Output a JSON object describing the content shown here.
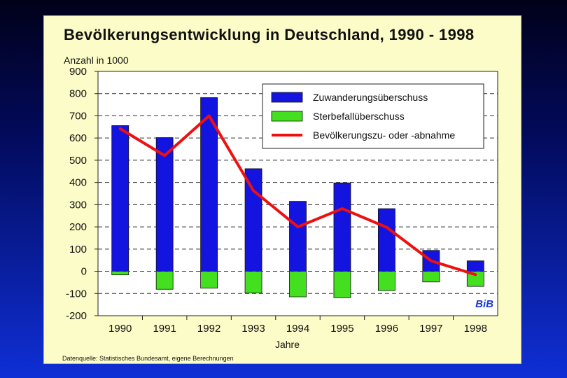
{
  "title": "Bevölkerungsentwicklung in Deutschland, 1990 - 1998",
  "source": "Datenquelle: Statistisches Bundesamt, eigene Berechnungen",
  "logo_text": "BiB",
  "chart_data": {
    "type": "bar",
    "title": "Bevölkerungsentwicklung in Deutschland, 1990 - 1998",
    "ylabel": "Anzahl in 1000",
    "xlabel": "Jahre",
    "ylim": [
      -200,
      900
    ],
    "yticks": [
      900,
      800,
      700,
      600,
      500,
      400,
      300,
      200,
      100,
      0,
      -100,
      -200
    ],
    "categories": [
      "1990",
      "1991",
      "1992",
      "1993",
      "1994",
      "1995",
      "1996",
      "1997",
      "1998"
    ],
    "grid": true,
    "legend_position": "top-right",
    "series": [
      {
        "name": "Zuwanderungsüberschuss",
        "type": "bar",
        "color": "#1414e0",
        "values": [
          656,
          602,
          782,
          462,
          315,
          398,
          282,
          94,
          47
        ]
      },
      {
        "name": "Sterbefallüberschuss",
        "type": "bar",
        "color": "#44e020",
        "values": [
          -16,
          -81,
          -76,
          -98,
          -115,
          -119,
          -87,
          -48,
          -68
        ]
      },
      {
        "name": "Bevölkerungszu- oder -abnahme",
        "type": "line",
        "color": "#ee1010",
        "values": [
          642,
          521,
          700,
          363,
          200,
          282,
          198,
          47,
          -15
        ]
      }
    ]
  }
}
